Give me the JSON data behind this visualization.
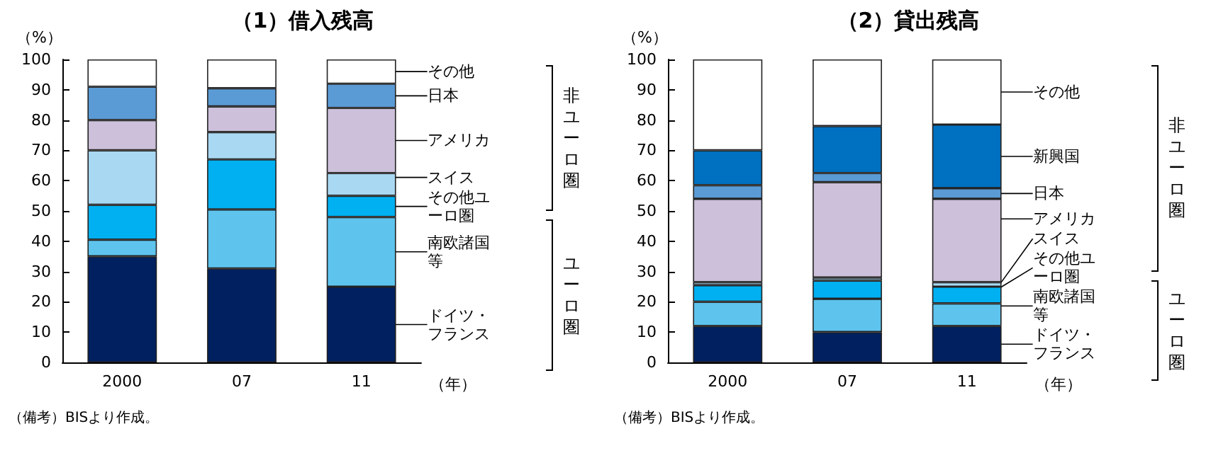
{
  "chart_data": [
    {
      "type": "bar",
      "title": "（1）借入残高",
      "ylabel": "（%）",
      "xlabel": "（年）",
      "categories": [
        "2000",
        "07",
        "11"
      ],
      "stacked": true,
      "legend": false,
      "grid": false,
      "ylim": [
        0,
        100
      ],
      "yticks": [
        0,
        10,
        20,
        30,
        40,
        50,
        60,
        70,
        80,
        90,
        100
      ],
      "annotations": [
        "（備考）BISより作成。",
        "非ユーロ圏",
        "ユーロ圏"
      ],
      "series": [
        {
          "name": "ドイツ・フランス",
          "color": "#002060",
          "values": [
            35,
            31,
            25
          ]
        },
        {
          "name": "南欧諸国等",
          "color": "#5ec4ee",
          "values": [
            5.5,
            19.5,
            23
          ]
        },
        {
          "name": "その他ユーロ圏",
          "color": "#00b0f0",
          "values": [
            11.5,
            16.5,
            7
          ]
        },
        {
          "name": "スイス",
          "color": "#a9d8f2",
          "values": [
            18,
            9,
            7.5
          ]
        },
        {
          "name": "アメリカ",
          "color": "#ccc0da",
          "values": [
            10,
            8.5,
            21.5
          ]
        },
        {
          "name": "日本",
          "color": "#5b9bd5",
          "values": [
            11,
            6,
            8
          ]
        },
        {
          "name": "その他",
          "color": "#ffffff",
          "values": [
            9,
            9.5,
            8
          ]
        }
      ]
    },
    {
      "type": "bar",
      "title": "（2）貸出残高",
      "ylabel": "（%）",
      "xlabel": "（年）",
      "categories": [
        "2000",
        "07",
        "11"
      ],
      "stacked": true,
      "legend": false,
      "grid": false,
      "ylim": [
        0,
        100
      ],
      "yticks": [
        0,
        10,
        20,
        30,
        40,
        50,
        60,
        70,
        80,
        90,
        100
      ],
      "annotations": [
        "（備考）BISより作成。",
        "非ユーロ圏",
        "ユーロ圏"
      ],
      "series": [
        {
          "name": "ドイツ・フランス",
          "color": "#002060",
          "values": [
            12,
            10,
            12
          ]
        },
        {
          "name": "南欧諸国等",
          "color": "#5ec4ee",
          "values": [
            8,
            11,
            7.5
          ]
        },
        {
          "name": "その他ユーロ圏",
          "color": "#00b0f0",
          "values": [
            5.5,
            6,
            5.5
          ]
        },
        {
          "name": "スイス",
          "color": "#a9d8f2",
          "values": [
            1,
            1,
            1.5
          ]
        },
        {
          "name": "アメリカ",
          "color": "#ccc0da",
          "values": [
            27.5,
            31.5,
            27.5
          ]
        },
        {
          "name": "日本",
          "color": "#5b9bd5",
          "values": [
            4.5,
            3,
            3.5
          ]
        },
        {
          "name": "新興国",
          "color": "#0070c0",
          "values": [
            11.5,
            15.5,
            21
          ]
        },
        {
          "name": "その他",
          "color": "#ffffff",
          "values": [
            30,
            22,
            21.5
          ]
        }
      ]
    }
  ]
}
